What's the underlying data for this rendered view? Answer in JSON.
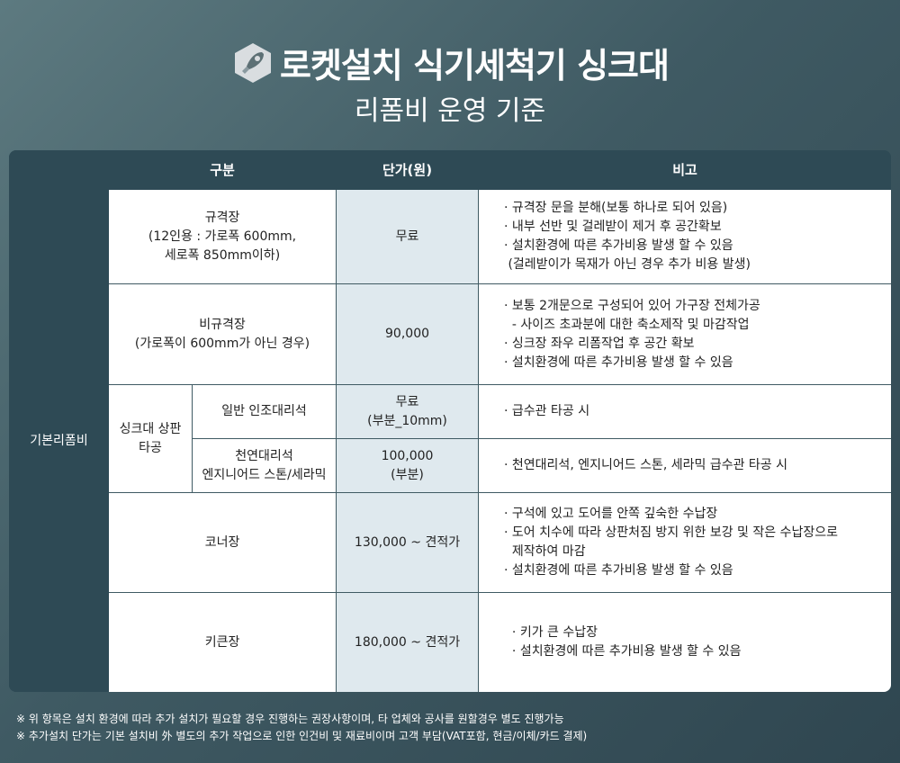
{
  "header": {
    "title": "로켓설치 식기세척기 싱크대",
    "subtitle": "리폼비 운영 기준",
    "logo": "rocket-icon"
  },
  "table": {
    "columns": [
      "구분",
      "단가(원)",
      "비고"
    ],
    "category": "기본리폼비",
    "sink_group": "싱크대 상판\n타공",
    "rows": [
      {
        "item": "규격장\n(12인용 : 가로폭 600mm,\n세로폭 850mm이하)",
        "price": "무료",
        "notes": [
          "· 규격장 문을 분해(보통 하나로 되어 있음)",
          "· 내부 선반 및 걸레받이 제거 후 공간확보",
          "· 설치환경에 따른 추가비용 발생 할 수 있음",
          " (걸레받이가 목재가 아닌 경우 추가 비용 발생)"
        ]
      },
      {
        "item": "비규격장\n(가로폭이 600mm가 아닌 경우)",
        "price": "90,000",
        "notes": [
          "· 보통 2개문으로 구성되어 있어 가구장 전체가공",
          "  - 사이즈 초과분에 대한 축소제작 및 마감작업",
          "· 싱크장 좌우 리폼작업 후 공간 확보",
          "· 설치환경에 따른 추가비용 발생 할 수 있음"
        ]
      },
      {
        "item": "일반 인조대리석",
        "price": "무료\n(부분_10mm)",
        "notes": [
          "· 급수관 타공 시"
        ]
      },
      {
        "item": "천연대리석\n엔지니어드 스톤/세라믹",
        "price": "100,000\n(부분)",
        "notes": [
          "· 천연대리석, 엔지니어드 스톤, 세라믹 급수관 타공 시"
        ]
      },
      {
        "item": "코너장",
        "price": "130,000 ~ 견적가",
        "notes": [
          "· 구석에 있고 도어를 안쪽 깊숙한 수납장",
          "· 도어 치수에 따라 상판처짐 방지 위한 보강 및 작은 수납장으로",
          "  제작하여 마감",
          "· 설치환경에 따른 추가비용 발생 할 수 있음"
        ]
      },
      {
        "item": "키큰장",
        "price": "180,000 ~ 견적가",
        "notes": [
          "  · 키가 큰 수납장",
          "  · 설치환경에 따른 추가비용 발생 할 수 있음"
        ]
      }
    ]
  },
  "footnotes": [
    "※ 위 항목은 설치 환경에 따라 추가 설치가 필요할 경우 진행하는 권장사항이며, 타 업체와 공사를 원할경우 별도 진행가능",
    "※ 추가설치 단가는 기본 설치비 外 별도의 추가 작업으로 인한 인건비 및 재료비이며 고객 부담(VAT포함, 현금/이체/카드 결제)"
  ]
}
